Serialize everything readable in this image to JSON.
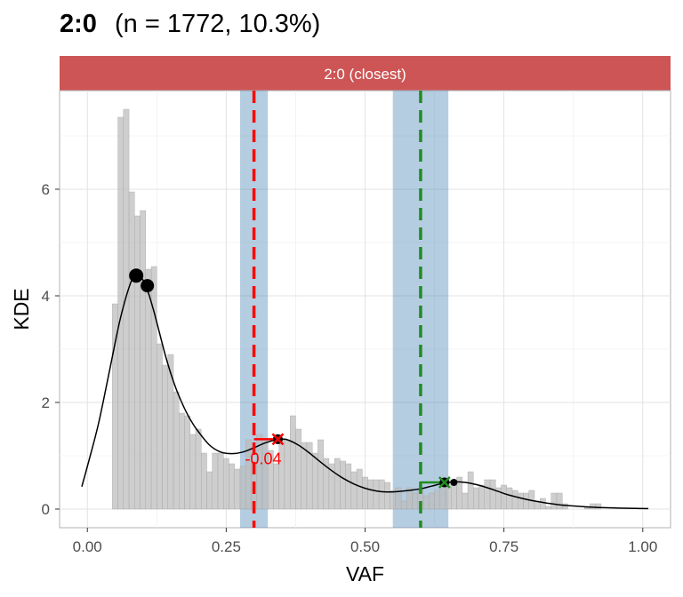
{
  "title": {
    "bold": "2:0",
    "rest": "(n = 1772, 10.3%)"
  },
  "chart_data": {
    "type": "histogram",
    "facet_label": "2:0 (closest)",
    "xlabel": "VAF",
    "ylabel": "KDE",
    "xlim": [
      -0.05,
      1.05
    ],
    "ylim": [
      -0.35,
      7.85
    ],
    "x_ticks": [
      0.0,
      0.25,
      0.5,
      0.75,
      1.0
    ],
    "x_tick_labels": [
      "0.00",
      "0.25",
      "0.50",
      "0.75",
      "1.00"
    ],
    "y_ticks": [
      0,
      2,
      4,
      6
    ],
    "y_tick_labels": [
      "0",
      "2",
      "4",
      "6"
    ],
    "grid": true,
    "histogram": {
      "bin_width": 0.01,
      "bin_starts": [
        0.045,
        0.055,
        0.065,
        0.075,
        0.085,
        0.095,
        0.105,
        0.115,
        0.125,
        0.135,
        0.145,
        0.155,
        0.165,
        0.175,
        0.185,
        0.195,
        0.205,
        0.215,
        0.225,
        0.235,
        0.245,
        0.255,
        0.265,
        0.275,
        0.285,
        0.295,
        0.305,
        0.315,
        0.325,
        0.335,
        0.345,
        0.355,
        0.365,
        0.375,
        0.385,
        0.395,
        0.405,
        0.415,
        0.425,
        0.435,
        0.445,
        0.455,
        0.465,
        0.475,
        0.485,
        0.495,
        0.505,
        0.515,
        0.525,
        0.535,
        0.545,
        0.555,
        0.565,
        0.575,
        0.585,
        0.595,
        0.605,
        0.615,
        0.625,
        0.635,
        0.645,
        0.655,
        0.665,
        0.675,
        0.685,
        0.695,
        0.705,
        0.715,
        0.725,
        0.735,
        0.745,
        0.755,
        0.765,
        0.775,
        0.785,
        0.795,
        0.805,
        0.815,
        0.825,
        0.835,
        0.845,
        0.855,
        0.865,
        0.875,
        0.885,
        0.895,
        0.905,
        0.915,
        0.925,
        0.935,
        0.945
      ],
      "density": [
        3.85,
        7.35,
        7.5,
        5.95,
        5.5,
        5.6,
        4.5,
        4.55,
        3.1,
        2.7,
        2.9,
        2.2,
        1.8,
        1.75,
        1.4,
        1.5,
        1.05,
        0.7,
        1.05,
        1.05,
        0.95,
        0.85,
        0.75,
        0.8,
        1.3,
        0.9,
        1.4,
        1.3,
        1.1,
        0.85,
        1.3,
        1.3,
        1.75,
        1.5,
        1.25,
        1.25,
        1.05,
        1.3,
        0.95,
        0.85,
        0.95,
        0.9,
        0.85,
        0.7,
        0.75,
        0.6,
        0.55,
        0.55,
        0.55,
        0.5,
        0.35,
        0.4,
        0.15,
        0.4,
        0.3,
        0.35,
        0.25,
        0.3,
        0.35,
        0.45,
        0.55,
        0.5,
        0.6,
        0.3,
        0.7,
        0.4,
        0.45,
        0.55,
        0.55,
        0.4,
        0.45,
        0.4,
        0.35,
        0.3,
        0.3,
        0.35,
        0.15,
        0.2,
        0.05,
        0.3,
        0.3,
        0.1,
        0,
        0,
        0,
        0.05,
        0.1,
        0.1,
        0,
        0,
        0
      ]
    },
    "kde": {
      "x": [
        -0.01,
        0.0,
        0.02,
        0.04,
        0.06,
        0.08,
        0.09,
        0.1,
        0.11,
        0.12,
        0.13,
        0.14,
        0.15,
        0.16,
        0.17,
        0.18,
        0.19,
        0.2,
        0.22,
        0.24,
        0.26,
        0.28,
        0.3,
        0.32,
        0.34,
        0.35,
        0.36,
        0.38,
        0.4,
        0.42,
        0.44,
        0.46,
        0.48,
        0.5,
        0.52,
        0.54,
        0.56,
        0.58,
        0.6,
        0.62,
        0.64,
        0.66,
        0.68,
        0.7,
        0.72,
        0.74,
        0.76,
        0.8,
        0.85,
        0.9,
        0.95,
        1.0,
        1.01
      ],
      "y": [
        0.42,
        0.8,
        1.6,
        2.6,
        3.6,
        4.3,
        4.38,
        4.3,
        4.05,
        3.7,
        3.3,
        2.9,
        2.55,
        2.25,
        2.0,
        1.78,
        1.6,
        1.45,
        1.2,
        1.07,
        1.04,
        1.07,
        1.15,
        1.24,
        1.3,
        1.31,
        1.3,
        1.2,
        1.05,
        0.88,
        0.72,
        0.58,
        0.47,
        0.39,
        0.34,
        0.32,
        0.33,
        0.35,
        0.38,
        0.43,
        0.48,
        0.51,
        0.5,
        0.46,
        0.4,
        0.33,
        0.26,
        0.16,
        0.08,
        0.04,
        0.02,
        0.01,
        0.01
      ]
    },
    "peak_points": [
      {
        "x": 0.088,
        "y": 4.38
      },
      {
        "x": 0.108,
        "y": 4.19
      }
    ],
    "bands": [
      {
        "from": 0.275,
        "to": 0.325,
        "color": "#4682B4"
      },
      {
        "from": 0.55,
        "to": 0.65,
        "color": "#4682B4"
      }
    ],
    "expected_lines": [
      {
        "x": 0.3,
        "color": "#FF0000"
      },
      {
        "x": 0.6,
        "color": "#228B22"
      }
    ],
    "matched_peaks": [
      {
        "x_expected": 0.3,
        "x_peak": 0.343,
        "y": 1.31,
        "color": "#FF0000",
        "label": "-0.04"
      },
      {
        "x_expected": 0.6,
        "x_peak": 0.643,
        "y": 0.5,
        "color": "#228B22",
        "label": ""
      }
    ],
    "minor_point": {
      "x": 0.66,
      "y": 0.5
    },
    "colors": {
      "facet_strip": "#CD5555",
      "histogram_fill": "#BEBEBE",
      "kde_line": "#000000",
      "band_fill": "#4682B4"
    }
  }
}
